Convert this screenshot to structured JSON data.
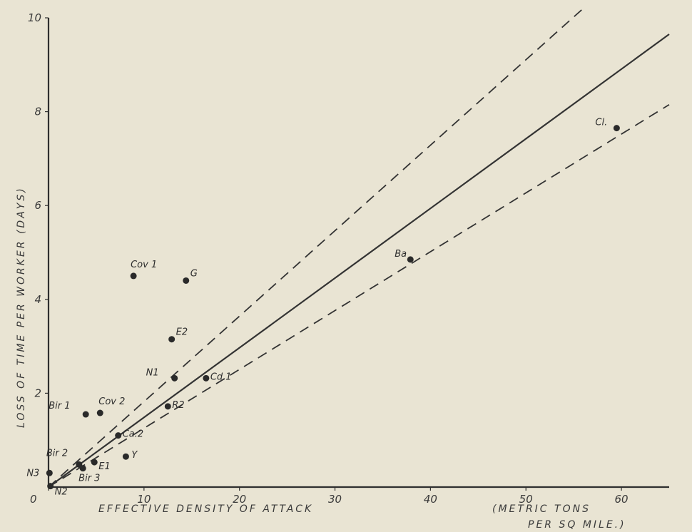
{
  "chart_data": {
    "type": "scatter",
    "xlabel": "EFFECTIVE DENSITY OF ATTACK",
    "xlabel_units_line1": "(METRIC TONS",
    "xlabel_units_line2": "PER SQ MILE.)",
    "ylabel": "LOSS OF TIME PER WORKER (DAYS)",
    "xlim": [
      0,
      65
    ],
    "ylim": [
      0,
      10
    ],
    "x_ticks": [
      {
        "value": 0,
        "label": "0"
      },
      {
        "value": 10,
        "label": "10"
      },
      {
        "value": 20,
        "label": "20"
      },
      {
        "value": 30,
        "label": "30"
      },
      {
        "value": 40,
        "label": "40"
      },
      {
        "value": 50,
        "label": "50"
      },
      {
        "value": 60,
        "label": "60"
      }
    ],
    "y_ticks": [
      {
        "value": 2,
        "label": "2"
      },
      {
        "value": 4,
        "label": "4"
      },
      {
        "value": 6,
        "label": "6"
      },
      {
        "value": 8,
        "label": "8"
      },
      {
        "value": 10,
        "label": "10"
      }
    ],
    "points": [
      {
        "label": "Cov 1",
        "x": 8.9,
        "y": 4.5
      },
      {
        "label": "G",
        "x": 14.4,
        "y": 4.4
      },
      {
        "label": "E2",
        "x": 12.9,
        "y": 3.15
      },
      {
        "label": "N1",
        "x": 13.2,
        "y": 2.32
      },
      {
        "label": "Cd.1",
        "x": 16.5,
        "y": 2.32
      },
      {
        "label": "R2",
        "x": 12.5,
        "y": 1.72
      },
      {
        "label": "Cov 2",
        "x": 5.4,
        "y": 1.58
      },
      {
        "label": "Bir 1",
        "x": 3.9,
        "y": 1.55
      },
      {
        "label": "Ca.2",
        "x": 7.3,
        "y": 1.1
      },
      {
        "label": "Y",
        "x": 8.1,
        "y": 0.65
      },
      {
        "label": "Bir 2",
        "x": 3.2,
        "y": 0.48
      },
      {
        "label": "E1",
        "x": 4.8,
        "y": 0.53
      },
      {
        "label": "Bir 3",
        "x": 3.6,
        "y": 0.4
      },
      {
        "label": "N3",
        "x": 0.1,
        "y": 0.3
      },
      {
        "label": "N2",
        "x": 0.2,
        "y": 0.02
      },
      {
        "label": "Ba",
        "x": 37.9,
        "y": 4.85
      },
      {
        "label": "Cl.",
        "x": 59.5,
        "y": 7.65
      }
    ],
    "lines": [
      {
        "style": "solid",
        "x": [
          0,
          65
        ],
        "y": [
          0,
          9.65
        ]
      },
      {
        "style": "dashed",
        "x": [
          0,
          56
        ],
        "y": [
          0,
          10.2
        ]
      },
      {
        "style": "dashed",
        "x": [
          0,
          65
        ],
        "y": [
          0,
          8.15
        ]
      }
    ]
  }
}
